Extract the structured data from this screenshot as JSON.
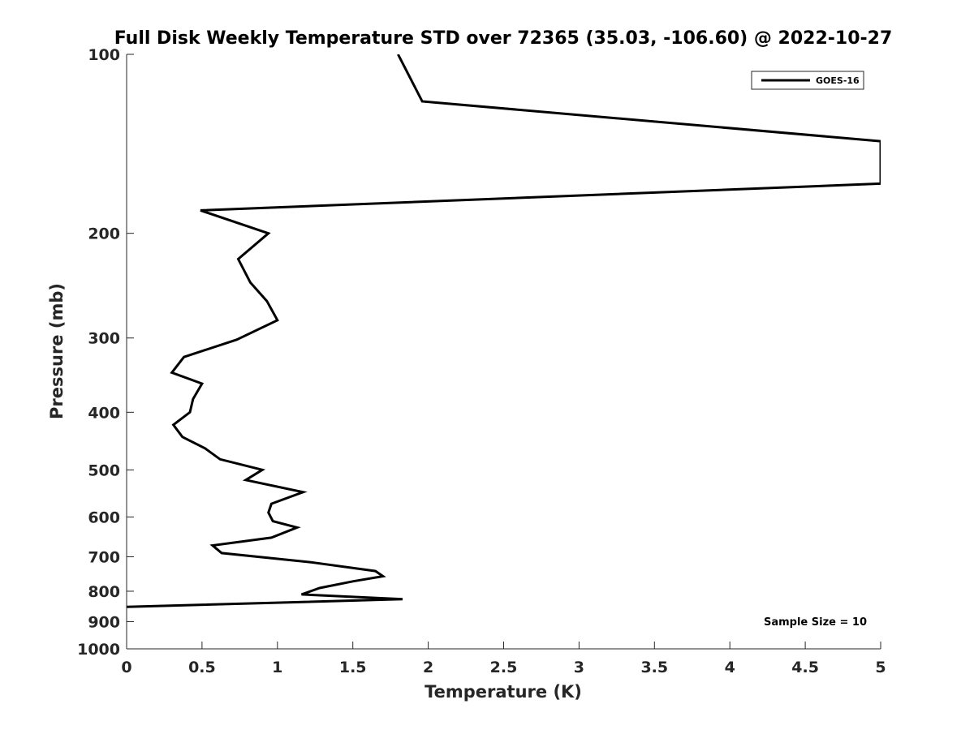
{
  "chart_data": {
    "type": "line",
    "title": "Full Disk Weekly Temperature STD over 72365 (35.03, -106.60) @ 2022-10-27",
    "xlabel": "Temperature (K)",
    "ylabel": "Pressure (mb)",
    "xlim": [
      0,
      5
    ],
    "ylim": [
      1000,
      100
    ],
    "yscale": "log",
    "y_reversed": true,
    "grid": false,
    "legend_position": "top-right",
    "xticks": [
      0,
      0.5,
      1,
      1.5,
      2,
      2.5,
      3,
      3.5,
      4,
      4.5,
      5
    ],
    "xtick_labels": [
      "0",
      "0.5",
      "1",
      "1.5",
      "2",
      "2.5",
      "3",
      "3.5",
      "4",
      "4.5",
      "5"
    ],
    "yticks": [
      100,
      200,
      300,
      400,
      500,
      600,
      700,
      800,
      900,
      1000
    ],
    "ytick_labels": [
      "100",
      "200",
      "300",
      "400",
      "500",
      "600",
      "700",
      "800",
      "900",
      "1000"
    ],
    "series": [
      {
        "name": "GOES-16",
        "color": "#000000",
        "x": [
          1.8,
          1.96,
          5.0,
          5.0,
          0.49,
          0.94,
          0.74,
          0.82,
          0.93,
          1.0,
          0.73,
          0.38,
          0.3,
          0.5,
          0.44,
          0.42,
          0.31,
          0.37,
          0.52,
          0.62,
          0.9,
          0.79,
          1.17,
          0.96,
          0.94,
          0.97,
          1.13,
          0.96,
          0.57,
          0.63,
          1.22,
          1.65,
          1.7,
          1.5,
          1.28,
          1.16,
          1.83,
          0.0
        ],
        "y": [
          100,
          120,
          140,
          165,
          183,
          200,
          221,
          242,
          260,
          280,
          302,
          323,
          343,
          358,
          380,
          400,
          420,
          440,
          460,
          480,
          500,
          520,
          545,
          570,
          590,
          610,
          625,
          650,
          670,
          690,
          715,
          740,
          755,
          770,
          790,
          810,
          825,
          850
        ]
      }
    ],
    "annotations": [
      "Sample Size = 10"
    ]
  }
}
